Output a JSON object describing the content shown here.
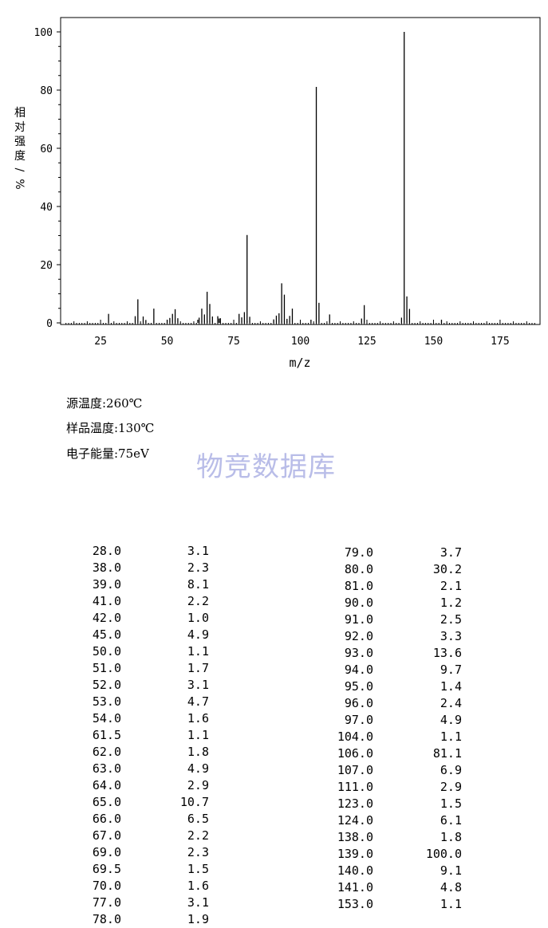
{
  "chart_data": {
    "type": "bar",
    "xlabel": "m/z",
    "ylabel": "相对强度/%",
    "xlim": [
      10,
      190
    ],
    "ylim": [
      0,
      100
    ],
    "xticks": [
      25,
      50,
      75,
      100,
      125,
      150,
      175
    ],
    "yticks": [
      0,
      20,
      40,
      60,
      80,
      100
    ],
    "grid": false,
    "series": [
      {
        "x": [
          28.0,
          38.0,
          39.0,
          41.0,
          42.0,
          45.0,
          50.0,
          51.0,
          52.0,
          53.0,
          54.0,
          61.5,
          62.0,
          63.0,
          64.0,
          65.0,
          66.0,
          67.0,
          69.0,
          69.5,
          70.0,
          77.0,
          78.0,
          79.0,
          80.0,
          81.0,
          90.0,
          91.0,
          92.0,
          93.0,
          94.0,
          95.0,
          96.0,
          97.0,
          104.0,
          106.0,
          107.0,
          111.0,
          123.0,
          124.0,
          138.0,
          139.0,
          140.0,
          141.0,
          153.0
        ],
        "values": [
          3.1,
          2.3,
          8.1,
          2.2,
          1.0,
          4.9,
          1.1,
          1.7,
          3.1,
          4.7,
          1.6,
          1.1,
          1.8,
          4.9,
          2.9,
          10.7,
          6.5,
          2.2,
          2.3,
          1.5,
          1.6,
          3.1,
          1.9,
          3.7,
          30.2,
          2.1,
          1.2,
          2.5,
          3.3,
          13.6,
          9.7,
          1.4,
          2.4,
          4.9,
          1.1,
          81.1,
          6.9,
          2.9,
          1.5,
          6.1,
          1.8,
          100.0,
          9.1,
          4.8,
          1.1
        ]
      }
    ]
  },
  "conditions": {
    "source_temp": "源温度:260℃",
    "sample_temp": "样品温度:130℃",
    "electron_energy": "电子能量:75eV"
  },
  "watermark": "物竞数据库",
  "peak_table": {
    "left": [
      {
        "mz": "28.0",
        "abundance": "3.1"
      },
      {
        "mz": "38.0",
        "abundance": "2.3"
      },
      {
        "mz": "39.0",
        "abundance": "8.1"
      },
      {
        "mz": "41.0",
        "abundance": "2.2"
      },
      {
        "mz": "42.0",
        "abundance": "1.0"
      },
      {
        "mz": "45.0",
        "abundance": "4.9"
      },
      {
        "mz": "50.0",
        "abundance": "1.1"
      },
      {
        "mz": "51.0",
        "abundance": "1.7"
      },
      {
        "mz": "52.0",
        "abundance": "3.1"
      },
      {
        "mz": "53.0",
        "abundance": "4.7"
      },
      {
        "mz": "54.0",
        "abundance": "1.6"
      },
      {
        "mz": "61.5",
        "abundance": "1.1"
      },
      {
        "mz": "62.0",
        "abundance": "1.8"
      },
      {
        "mz": "63.0",
        "abundance": "4.9"
      },
      {
        "mz": "64.0",
        "abundance": "2.9"
      },
      {
        "mz": "65.0",
        "abundance": "10.7"
      },
      {
        "mz": "66.0",
        "abundance": "6.5"
      },
      {
        "mz": "67.0",
        "abundance": "2.2"
      },
      {
        "mz": "69.0",
        "abundance": "2.3"
      },
      {
        "mz": "69.5",
        "abundance": "1.5"
      },
      {
        "mz": "70.0",
        "abundance": "1.6"
      },
      {
        "mz": "77.0",
        "abundance": "3.1"
      },
      {
        "mz": "78.0",
        "abundance": "1.9"
      }
    ],
    "right": [
      {
        "mz": "79.0",
        "abundance": "3.7"
      },
      {
        "mz": "80.0",
        "abundance": "30.2"
      },
      {
        "mz": "81.0",
        "abundance": "2.1"
      },
      {
        "mz": "90.0",
        "abundance": "1.2"
      },
      {
        "mz": "91.0",
        "abundance": "2.5"
      },
      {
        "mz": "92.0",
        "abundance": "3.3"
      },
      {
        "mz": "93.0",
        "abundance": "13.6"
      },
      {
        "mz": "94.0",
        "abundance": "9.7"
      },
      {
        "mz": "95.0",
        "abundance": "1.4"
      },
      {
        "mz": "96.0",
        "abundance": "2.4"
      },
      {
        "mz": "97.0",
        "abundance": "4.9"
      },
      {
        "mz": "104.0",
        "abundance": "1.1"
      },
      {
        "mz": "106.0",
        "abundance": "81.1"
      },
      {
        "mz": "107.0",
        "abundance": "6.9"
      },
      {
        "mz": "111.0",
        "abundance": "2.9"
      },
      {
        "mz": "123.0",
        "abundance": "1.5"
      },
      {
        "mz": "124.0",
        "abundance": "6.1"
      },
      {
        "mz": "138.0",
        "abundance": "1.8"
      },
      {
        "mz": "139.0",
        "abundance": "100.0"
      },
      {
        "mz": "140.0",
        "abundance": "9.1"
      },
      {
        "mz": "141.0",
        "abundance": "4.8"
      },
      {
        "mz": "153.0",
        "abundance": "1.1"
      }
    ]
  }
}
